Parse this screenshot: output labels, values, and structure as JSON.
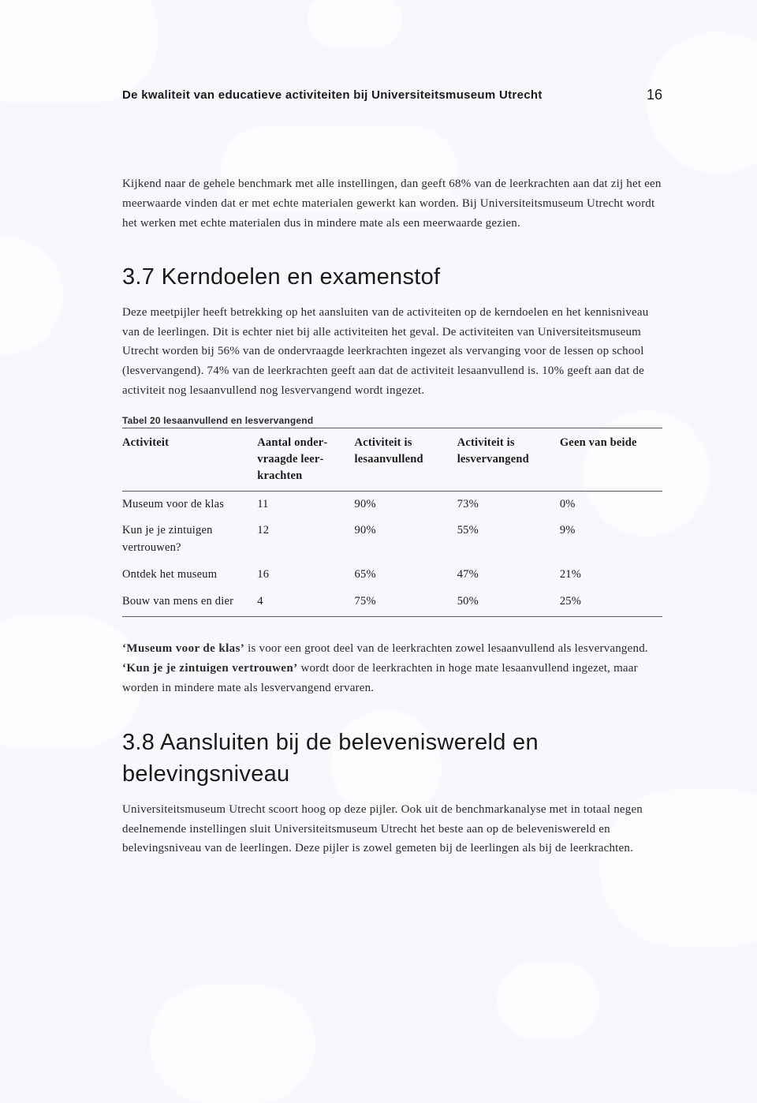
{
  "running_head": {
    "title": "De kwaliteit van educatieve activiteiten bij Universiteitsmuseum Utrecht",
    "page_number": "16"
  },
  "intro_para": "Kijkend naar de gehele benchmark met alle instellingen, dan geeft 68% van de leerkrachten aan dat zij het een meerwaarde vinden dat er met echte materialen gewerkt kan worden. Bij Universiteitsmuseum Utrecht wordt het werken met echte materialen dus in mindere mate als een meerwaarde gezien.",
  "section37": {
    "heading": "3.7  Kerndoelen en examenstof",
    "para": "Deze meetpijler heeft betrekking op het aansluiten van de activiteiten op de kerndoelen en het kennisniveau van de leerlingen. Dit is echter niet bij alle activiteiten het geval. De activiteiten van Universiteitsmuseum Utrecht worden bij 56% van de ondervraagde leerkrachten ingezet als vervanging voor de lessen op school (lesvervangend). 74% van de leerkrachten geeft aan dat de activiteit lesaanvullend is. 10% geeft aan dat de activiteit nog lesaanvullend nog lesvervangend wordt ingezet."
  },
  "table20": {
    "type": "table",
    "caption": "Tabel 20 lesaanvullend en lesvervangend",
    "columns": [
      "Activiteit",
      "Aantal onder­vraagde leer­krachten",
      "Activiteit is lesaanvullend",
      "Activiteit is lesvervangend",
      "Geen van beide"
    ],
    "col_widths_pct": [
      25,
      18,
      19,
      19,
      19
    ],
    "header_fontweight": "700",
    "border_color": "#5a5a5a",
    "font_size_pt": 11,
    "rows": [
      [
        "Museum voor de klas",
        "11",
        "90%",
        "73%",
        "0%"
      ],
      [
        "Kun je je zintuigen vertrouwen?",
        "12",
        "90%",
        "55%",
        "9%"
      ],
      [
        "Ontdek het museum",
        "16",
        "65%",
        "47%",
        "21%"
      ],
      [
        "Bouw van mens en dier",
        "4",
        "75%",
        "50%",
        "25%"
      ]
    ]
  },
  "para_after_table": {
    "bold1": "‘Museum voor de klas’",
    "text1": " is voor een groot deel van de leerkrachten zowel lesaanvullend als lesvervangend. ",
    "bold2": "‘Kun je je zintuigen vertrouwen’",
    "text2": " wordt door de leerkrachten in hoge mate lesaanvullend ingezet, maar worden in mindere mate als lesvervangend ervaren."
  },
  "section38": {
    "heading": "3.8  Aansluiten bij de beleveniswereld en belevingsniveau",
    "para": "Universiteitsmuseum Utrecht scoort hoog op deze pijler. Ook uit de benchmarkanalyse met in totaal negen deelnemende instellingen sluit Universiteitsmuseum Utrecht het beste aan op de beleveniswereld en belevingsniveau van de leerlingen. Deze pijler is zowel gemeten bij de leerlingen als bij de leerkrachten."
  },
  "colors": {
    "page_bg": "#f6f8fb",
    "text": "#1a1a1a",
    "shape_fill": "#ffffff"
  }
}
